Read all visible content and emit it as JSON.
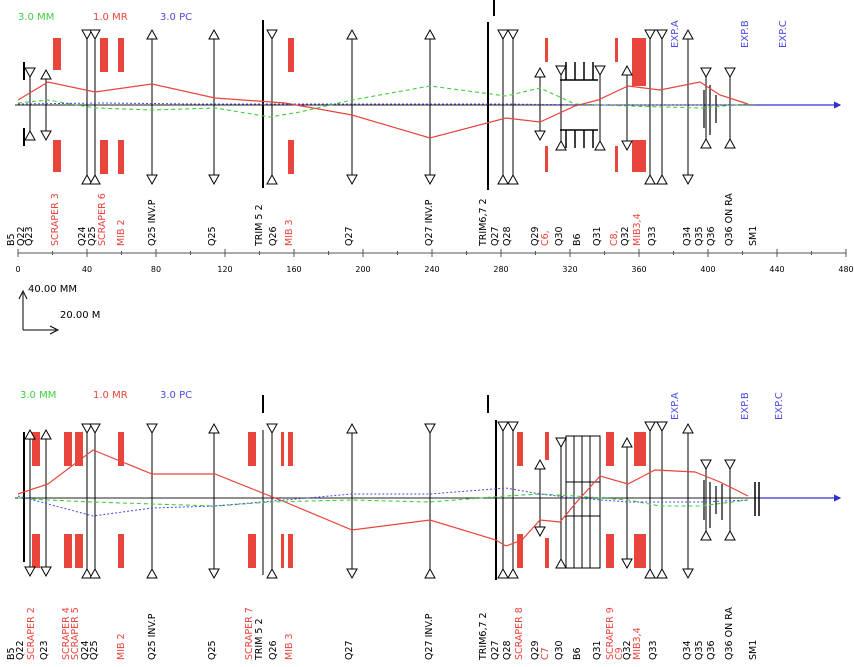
{
  "colors": {
    "green": "#3fcf3f",
    "red": "#e8453c",
    "blue": "#4a4ae6",
    "black": "#000000",
    "axis": "#555555"
  },
  "scale_bar": {
    "vertical_label": "40.00 MM",
    "horizontal_label": "20.00 M"
  },
  "ruler": {
    "ticks": [
      "0",
      "40",
      "80",
      "120",
      "160",
      "200",
      "240",
      "280",
      "320",
      "360",
      "400",
      "440",
      "480"
    ]
  },
  "panels": [
    {
      "id": "top",
      "legend": {
        "green": "3.0 MM",
        "red": "1.0 MR",
        "blue": "3.0 PC"
      },
      "exp_labels": [
        "EXP.A",
        "EXP.B",
        "EXP.C"
      ],
      "labels": [
        {
          "text": "B5",
          "color": "black"
        },
        {
          "text": "Q22",
          "color": "black"
        },
        {
          "text": "Q23",
          "color": "black"
        },
        {
          "text": "SCRAPER 3",
          "color": "red"
        },
        {
          "text": "Q24",
          "color": "black"
        },
        {
          "text": "Q25",
          "color": "black"
        },
        {
          "text": "SCRAPER 6",
          "color": "red"
        },
        {
          "text": "MIB 2",
          "color": "red"
        },
        {
          "text": "Q25 INV.P",
          "color": "black"
        },
        {
          "text": "Q25",
          "color": "black"
        },
        {
          "text": "TRIM 5  2",
          "color": "black"
        },
        {
          "text": "Q26",
          "color": "black"
        },
        {
          "text": "MIB 3",
          "color": "red"
        },
        {
          "text": "Q27",
          "color": "black"
        },
        {
          "text": "Q27 INV.P",
          "color": "black"
        },
        {
          "text": "TRIM6,7 2",
          "color": "black"
        },
        {
          "text": "Q27",
          "color": "black"
        },
        {
          "text": "Q28",
          "color": "black"
        },
        {
          "text": "Q29",
          "color": "black"
        },
        {
          "text": "C6,",
          "color": "red"
        },
        {
          "text": "Q30",
          "color": "black"
        },
        {
          "text": "B6",
          "color": "black"
        },
        {
          "text": "Q31",
          "color": "black"
        },
        {
          "text": "C8,",
          "color": "red"
        },
        {
          "text": "Q32",
          "color": "black"
        },
        {
          "text": "MIB3,4",
          "color": "red"
        },
        {
          "text": "Q33",
          "color": "black"
        },
        {
          "text": "Q34",
          "color": "black"
        },
        {
          "text": "Q35",
          "color": "black"
        },
        {
          "text": "Q36",
          "color": "black"
        },
        {
          "text": "Q36 ON RA",
          "color": "black"
        },
        {
          "text": "SM1",
          "color": "black"
        }
      ]
    },
    {
      "id": "bottom",
      "legend": {
        "green": "3.0 MM",
        "red": "1.0 MR",
        "blue": "3.0 PC"
      },
      "exp_labels": [
        "EXP.A",
        "EXP.B",
        "EXP.C"
      ],
      "labels": [
        {
          "text": "B5",
          "color": "black"
        },
        {
          "text": "Q22",
          "color": "black"
        },
        {
          "text": "SCRAPER 2",
          "color": "red"
        },
        {
          "text": "Q23",
          "color": "black"
        },
        {
          "text": "SCRAPER 4",
          "color": "red"
        },
        {
          "text": "SCRAPER 5",
          "color": "red"
        },
        {
          "text": "Q24",
          "color": "black"
        },
        {
          "text": "Q25",
          "color": "black"
        },
        {
          "text": "MIB 2",
          "color": "red"
        },
        {
          "text": "Q25 INV.P",
          "color": "black"
        },
        {
          "text": "Q25",
          "color": "black"
        },
        {
          "text": "SCRAPER 7",
          "color": "red"
        },
        {
          "text": "TRIM 5  2",
          "color": "black"
        },
        {
          "text": "Q26",
          "color": "black"
        },
        {
          "text": "MIB 3",
          "color": "red"
        },
        {
          "text": "Q27",
          "color": "black"
        },
        {
          "text": "Q27 INV.P",
          "color": "black"
        },
        {
          "text": "TRIM6,7 2",
          "color": "black"
        },
        {
          "text": "Q27",
          "color": "black"
        },
        {
          "text": "Q28",
          "color": "black"
        },
        {
          "text": "SCRAPER 8",
          "color": "red"
        },
        {
          "text": "Q29",
          "color": "black"
        },
        {
          "text": "C7",
          "color": "red"
        },
        {
          "text": "Q30",
          "color": "black"
        },
        {
          "text": "B6",
          "color": "black"
        },
        {
          "text": "Q31",
          "color": "black"
        },
        {
          "text": "SCRAPER 9",
          "color": "red"
        },
        {
          "text": "C9",
          "color": "red"
        },
        {
          "text": "Q32",
          "color": "black"
        },
        {
          "text": "MIB3,4",
          "color": "red"
        },
        {
          "text": "Q33",
          "color": "black"
        },
        {
          "text": "Q34",
          "color": "black"
        },
        {
          "text": "Q35",
          "color": "black"
        },
        {
          "text": "Q36",
          "color": "black"
        },
        {
          "text": "Q36 ON RA",
          "color": "black"
        },
        {
          "text": "SM1",
          "color": "black"
        }
      ]
    }
  ]
}
